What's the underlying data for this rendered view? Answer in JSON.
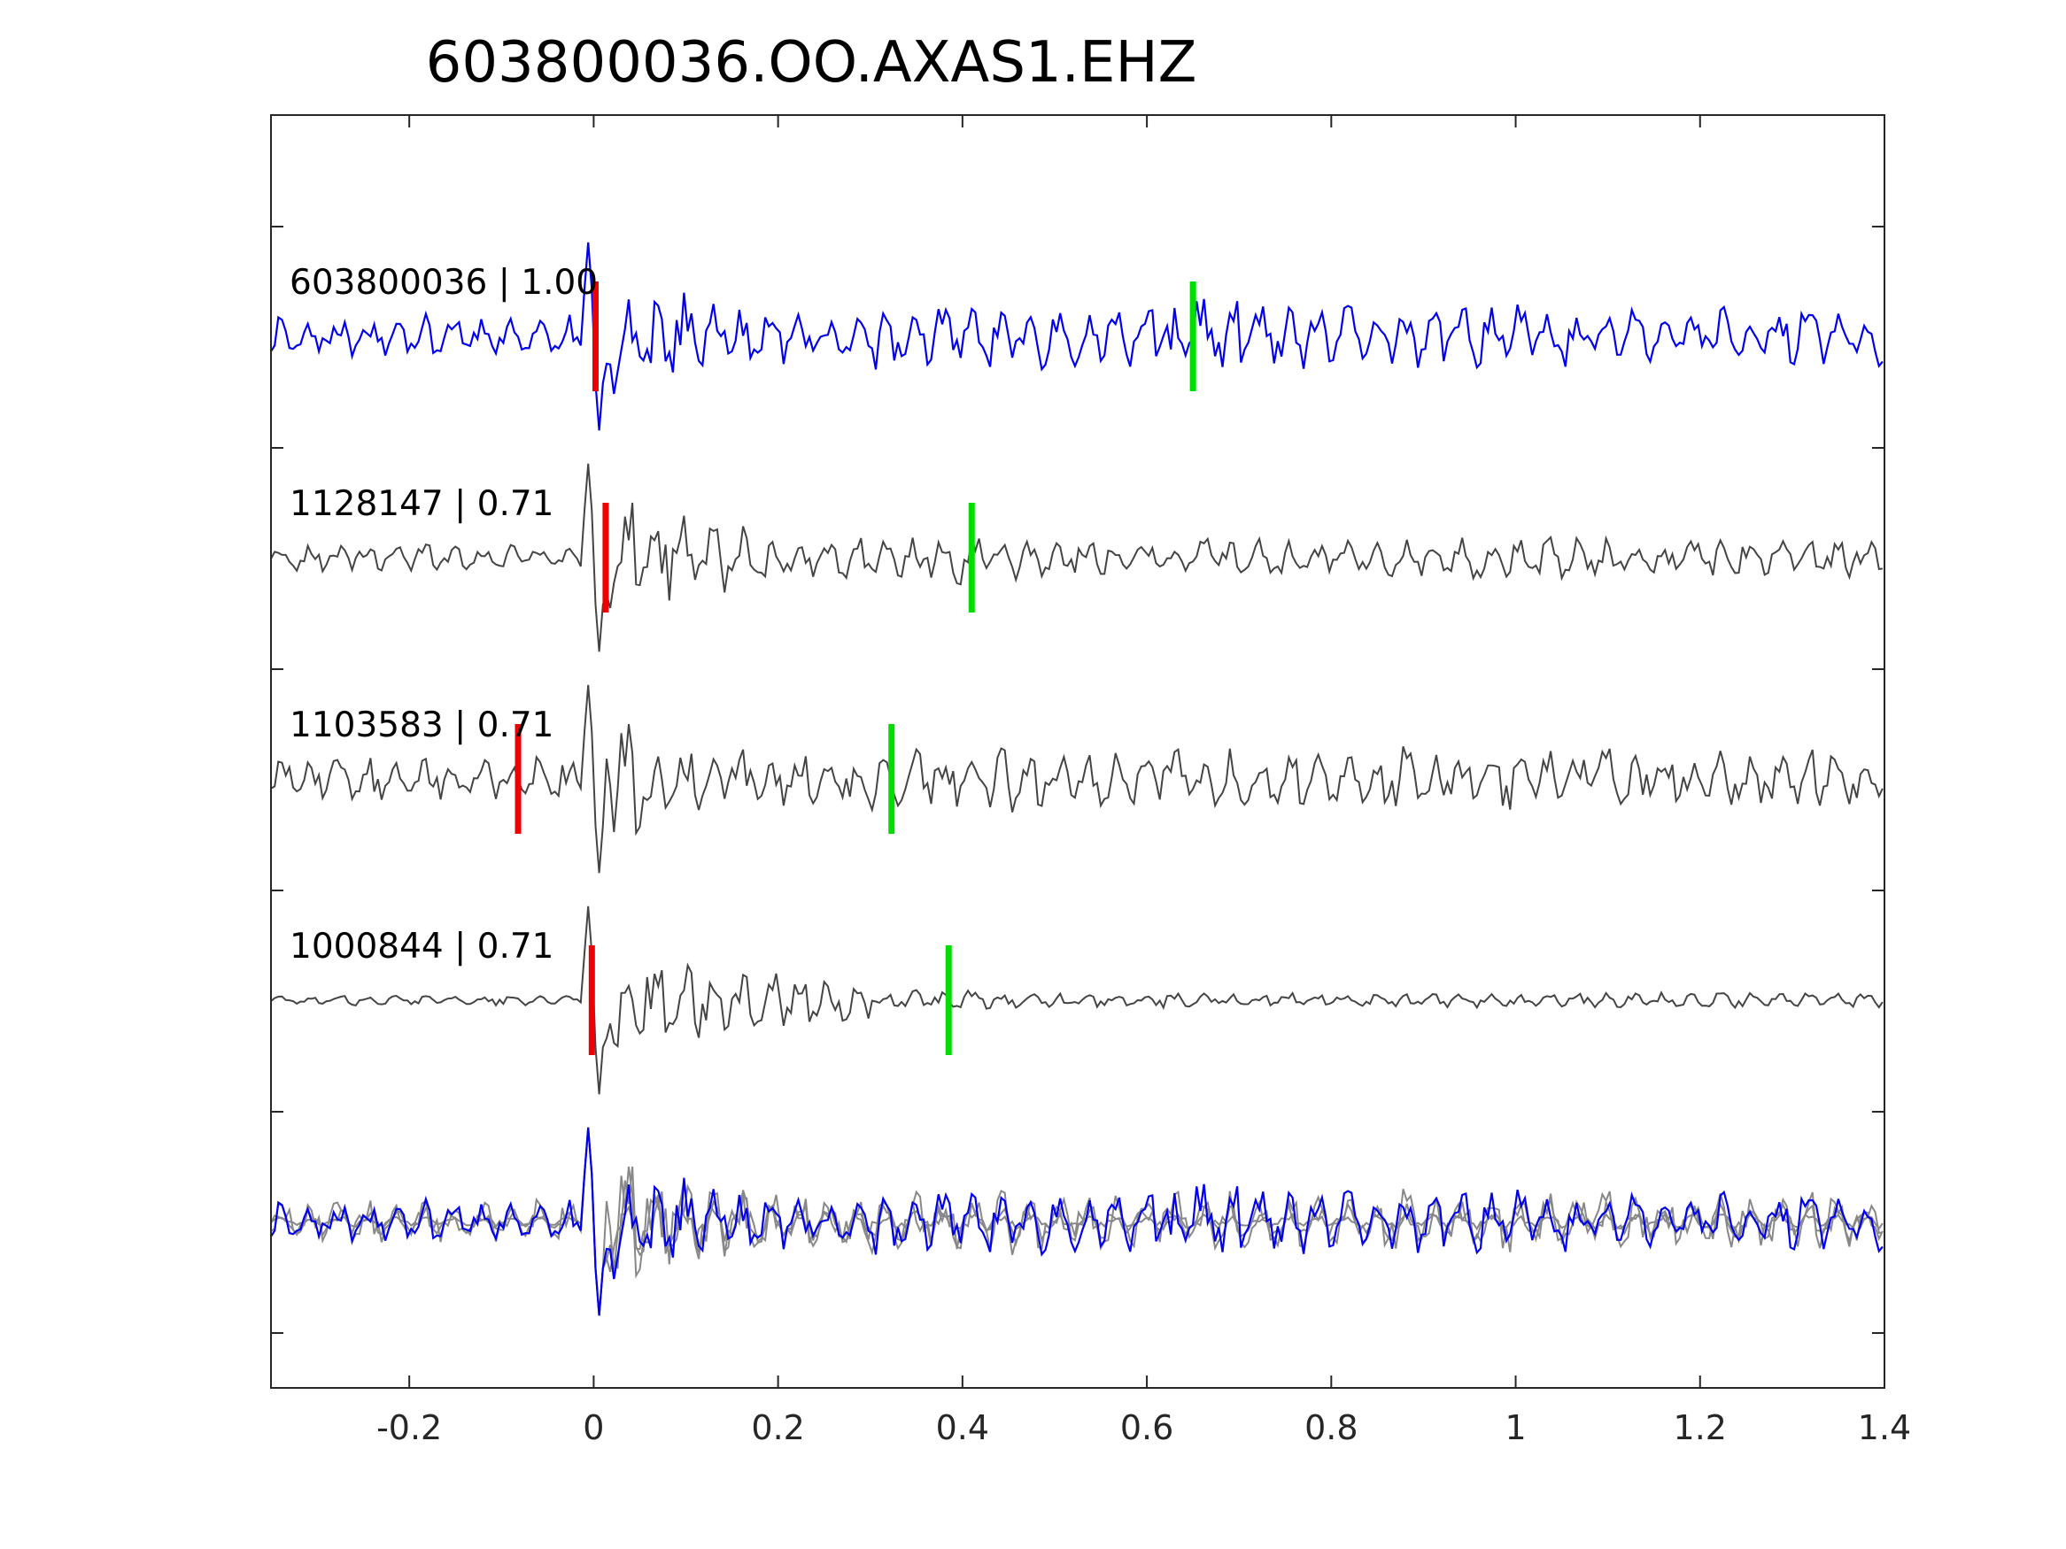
{
  "chart_data": {
    "type": "line",
    "title": "603800036.OO.AXAS1.EHZ",
    "xlabel": "",
    "ylabel": "",
    "xlim": [
      -0.35,
      1.4
    ],
    "x_ticks": [
      -0.2,
      0,
      0.2,
      0.4,
      0.6,
      0.8,
      1,
      1.2,
      1.4
    ],
    "x_tick_labels": [
      "-0.2",
      "0",
      "0.2",
      "0.4",
      "0.6",
      "0.8",
      "1",
      "1.2",
      "1.4"
    ],
    "grid": false,
    "series": [
      {
        "label": "603800036 | 1.00",
        "color": "#0000ee",
        "p_pick_time": 0.002,
        "s_pick_time": 0.65,
        "first_arrival_time": 0.0
      },
      {
        "label": "1128147 | 0.71",
        "color": "#444444",
        "p_pick_time": 0.013,
        "s_pick_time": 0.41,
        "first_arrival_time": 0.0
      },
      {
        "label": "1103583 | 0.71",
        "color": "#444444",
        "p_pick_time": -0.082,
        "s_pick_time": 0.323,
        "first_arrival_time": 0.0
      },
      {
        "label": "1000844 | 0.71",
        "color": "#444444",
        "p_pick_time": -0.002,
        "s_pick_time": 0.385,
        "first_arrival_time": 0.0
      }
    ],
    "stack": {
      "description_visible": false,
      "reference_color": "#0000ee",
      "other_color": "#888888"
    },
    "pick_colors": {
      "p": "#ee0000",
      "s": "#00dd00"
    }
  }
}
